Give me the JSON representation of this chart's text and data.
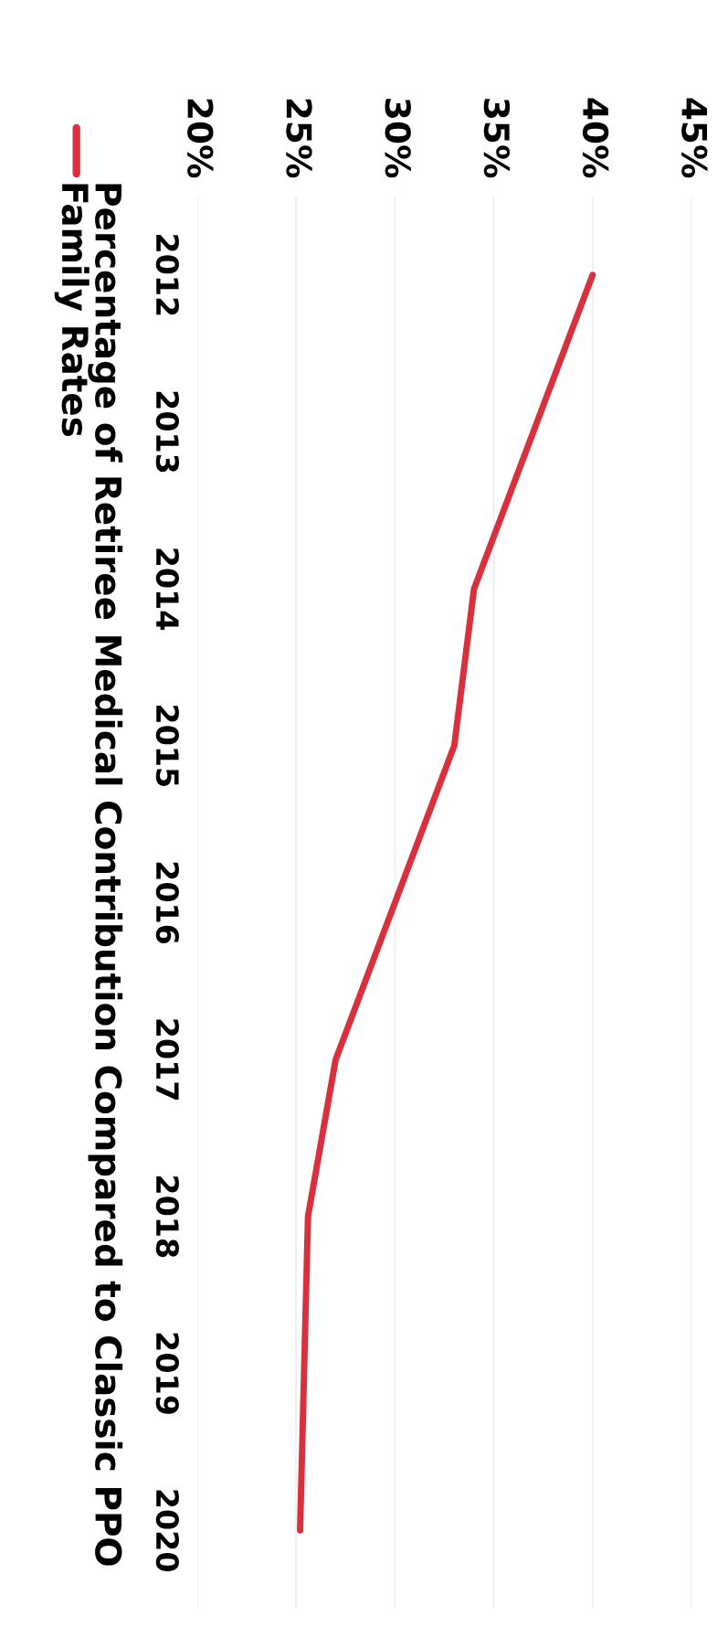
{
  "chart_data": {
    "type": "line",
    "orientation": "horizontal",
    "categories": [
      "2012",
      "2013",
      "2014",
      "2015",
      "2016",
      "2017",
      "2018",
      "2019",
      "2020"
    ],
    "series": [
      {
        "name": "Percentage of Retiree Medical Contribution Compared to Classic PPO Family Rates",
        "color": "#d9303e",
        "values": [
          40,
          37,
          34,
          33,
          30,
          27,
          25.6,
          25.4,
          25.2
        ]
      }
    ],
    "xlim": [
      20,
      45
    ],
    "xticks": [
      {
        "value": 20,
        "label": "20%"
      },
      {
        "value": 25,
        "label": "25%"
      },
      {
        "value": 30,
        "label": "30%"
      },
      {
        "value": 35,
        "label": "35%"
      },
      {
        "value": 40,
        "label": "40%"
      },
      {
        "value": 45,
        "label": "45%"
      }
    ],
    "grid": "x",
    "legend": "left",
    "marker": "none",
    "line_style": "solid"
  }
}
